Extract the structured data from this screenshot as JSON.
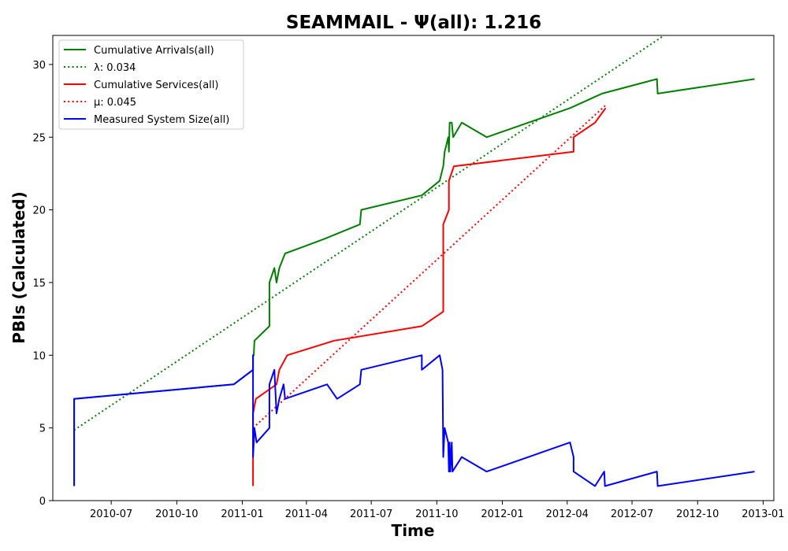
{
  "chart_data": {
    "type": "line",
    "title": "SEAMMAIL -  Ψ(all): 1.216",
    "xlabel": "Time",
    "ylabel": "PBIs (Calculated)",
    "x_axis_type": "date",
    "xlim": [
      "2010-04-10",
      "2013-01-16"
    ],
    "ylim": [
      0,
      32
    ],
    "x_ticks": [
      "2010-07-01",
      "2010-10-01",
      "2011-01-01",
      "2011-04-01",
      "2011-07-01",
      "2011-10-01",
      "2012-01-01",
      "2012-04-01",
      "2012-07-01",
      "2012-10-01",
      "2013-01-01"
    ],
    "x_tick_labels": [
      "2010-07",
      "2010-10",
      "2011-01",
      "2011-04",
      "2011-07",
      "2011-10",
      "2012-01",
      "2012-04",
      "2012-07",
      "2012-10",
      "2013-01"
    ],
    "y_ticks": [
      0,
      5,
      10,
      15,
      20,
      25,
      30
    ],
    "y_tick_labels": [
      "0",
      "5",
      "10",
      "15",
      "20",
      "25",
      "30"
    ],
    "grid": false,
    "legend_position": "top-left",
    "series": [
      {
        "name": "Cumulative Arrivals(all)",
        "color": "#008000",
        "style": "solid",
        "points": [
          [
            "2010-05-10",
            1
          ],
          [
            "2010-05-10",
            7
          ],
          [
            "2010-12-20",
            8
          ],
          [
            "2011-01-16",
            9
          ],
          [
            "2011-01-16",
            10
          ],
          [
            "2011-01-17",
            10
          ],
          [
            "2011-01-18",
            11
          ],
          [
            "2011-02-08",
            12
          ],
          [
            "2011-02-08",
            15
          ],
          [
            "2011-02-15",
            16
          ],
          [
            "2011-02-18",
            15
          ],
          [
            "2011-02-22",
            16
          ],
          [
            "2011-03-02",
            17
          ],
          [
            "2011-04-26",
            18
          ],
          [
            "2011-06-15",
            19
          ],
          [
            "2011-06-17",
            20
          ],
          [
            "2011-09-10",
            21
          ],
          [
            "2011-10-05",
            22
          ],
          [
            "2011-10-10",
            23
          ],
          [
            "2011-10-12",
            24
          ],
          [
            "2011-10-17",
            25
          ],
          [
            "2011-10-18",
            24
          ],
          [
            "2011-10-19",
            26
          ],
          [
            "2011-10-22",
            26
          ],
          [
            "2011-10-24",
            25
          ],
          [
            "2011-11-05",
            26
          ],
          [
            "2011-12-10",
            25
          ],
          [
            "2012-04-05",
            27
          ],
          [
            "2012-05-20",
            28
          ],
          [
            "2012-08-05",
            29
          ],
          [
            "2012-08-06",
            28
          ],
          [
            "2012-12-20",
            29
          ]
        ]
      },
      {
        "name": "λ: 0.034",
        "color": "#008000",
        "style": "dotted",
        "points": [
          [
            "2010-05-10",
            4.85
          ],
          [
            "2012-08-15",
            32
          ]
        ]
      },
      {
        "name": "Cumulative Services(all)",
        "color": "#ff0000",
        "style": "solid",
        "points": [
          [
            "2011-01-16",
            1
          ],
          [
            "2011-01-16",
            6
          ],
          [
            "2011-01-20",
            7
          ],
          [
            "2011-02-18",
            8
          ],
          [
            "2011-02-22",
            9
          ],
          [
            "2011-03-05",
            10
          ],
          [
            "2011-05-10",
            11
          ],
          [
            "2011-09-10",
            12
          ],
          [
            "2011-10-10",
            13
          ],
          [
            "2011-10-10",
            19
          ],
          [
            "2011-10-18",
            20
          ],
          [
            "2011-10-18",
            22
          ],
          [
            "2011-10-25",
            23
          ],
          [
            "2012-04-10",
            24
          ],
          [
            "2012-04-10",
            25
          ],
          [
            "2012-05-10",
            26
          ],
          [
            "2012-05-25",
            27
          ]
        ]
      },
      {
        "name": "μ: 0.045",
        "color": "#ff0000",
        "style": "dotted",
        "points": [
          [
            "2011-01-16",
            5
          ],
          [
            "2012-05-25",
            27.2
          ]
        ]
      },
      {
        "name": "Measured System Size(all)",
        "color": "#0000ff",
        "style": "solid",
        "points": [
          [
            "2010-05-10",
            1
          ],
          [
            "2010-05-10",
            7
          ],
          [
            "2010-12-20",
            8
          ],
          [
            "2011-01-16",
            9
          ],
          [
            "2011-01-16",
            10
          ],
          [
            "2011-01-16",
            3
          ],
          [
            "2011-01-18",
            5
          ],
          [
            "2011-01-21",
            4
          ],
          [
            "2011-02-08",
            5
          ],
          [
            "2011-02-08",
            8
          ],
          [
            "2011-02-15",
            9
          ],
          [
            "2011-02-18",
            6
          ],
          [
            "2011-02-22",
            7
          ],
          [
            "2011-02-28",
            8
          ],
          [
            "2011-03-02",
            7
          ],
          [
            "2011-04-30",
            8
          ],
          [
            "2011-05-14",
            7
          ],
          [
            "2011-06-15",
            8
          ],
          [
            "2011-06-17",
            9
          ],
          [
            "2011-09-10",
            10
          ],
          [
            "2011-09-10",
            9
          ],
          [
            "2011-10-05",
            10
          ],
          [
            "2011-10-09",
            9
          ],
          [
            "2011-10-10",
            3
          ],
          [
            "2011-10-12",
            5
          ],
          [
            "2011-10-17",
            4
          ],
          [
            "2011-10-18",
            2
          ],
          [
            "2011-10-19",
            4
          ],
          [
            "2011-10-20",
            2
          ],
          [
            "2011-10-22",
            4
          ],
          [
            "2011-10-23",
            2
          ],
          [
            "2011-11-05",
            3
          ],
          [
            "2011-12-10",
            2
          ],
          [
            "2012-04-05",
            4
          ],
          [
            "2012-04-10",
            3
          ],
          [
            "2012-04-10",
            2
          ],
          [
            "2012-05-10",
            1
          ],
          [
            "2012-05-23",
            2
          ],
          [
            "2012-05-24",
            1
          ],
          [
            "2012-08-05",
            2
          ],
          [
            "2012-08-06",
            1
          ],
          [
            "2012-12-20",
            2
          ]
        ]
      }
    ]
  }
}
